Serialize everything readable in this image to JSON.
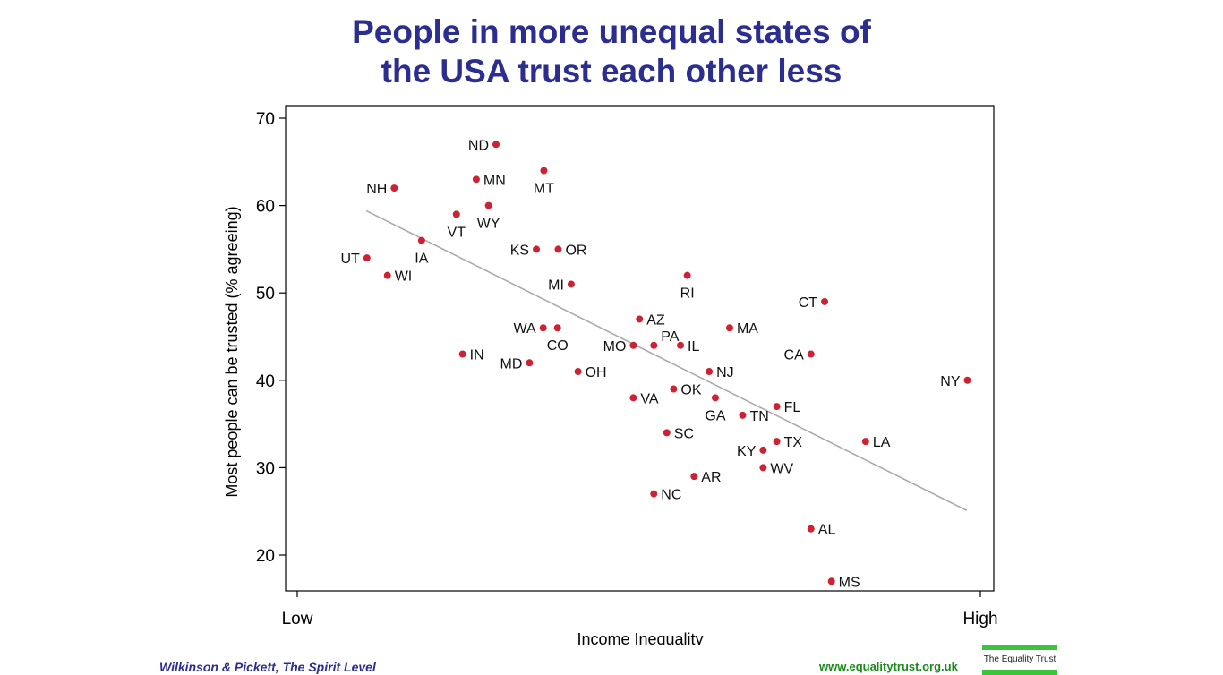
{
  "title_lines": [
    "People in more unequal states of",
    "the USA trust each other less"
  ],
  "footer": {
    "citation": "Wilkinson & Pickett, The Spirit Level",
    "url": "www.equalitytrust.org.uk",
    "logo_text": "The Equality Trust"
  },
  "colors": {
    "title": "#2b2e8f",
    "point": "#cc2233",
    "trend": "#aaaaaa",
    "url": "#1b8a1b",
    "logo": "#3cc43c"
  },
  "chart_data": {
    "type": "scatter",
    "xlabel": "Income Inequality",
    "ylabel": "Most people can be trusted (% agreeing)",
    "xlim": [
      0,
      100
    ],
    "ylim": [
      15,
      71
    ],
    "x_ticks": [
      {
        "value": 0,
        "label": "Low"
      },
      {
        "value": 100,
        "label": "High"
      }
    ],
    "y_ticks": [
      20,
      30,
      40,
      50,
      60,
      70
    ],
    "grid": false,
    "trendline": [
      {
        "x": 10.1,
        "y": 59.4
      },
      {
        "x": 98.0,
        "y": 25.1
      }
    ],
    "points": [
      {
        "label": "ND",
        "x": 29.1,
        "y": 67,
        "label_pos": "left"
      },
      {
        "label": "MT",
        "x": 36.1,
        "y": 64,
        "label_pos": "below"
      },
      {
        "label": "MN",
        "x": 26.2,
        "y": 63,
        "label_pos": "right"
      },
      {
        "label": "NH",
        "x": 14.2,
        "y": 62,
        "label_pos": "left"
      },
      {
        "label": "VT",
        "x": 23.3,
        "y": 59,
        "label_pos": "below"
      },
      {
        "label": "WY",
        "x": 28.0,
        "y": 60,
        "label_pos": "below"
      },
      {
        "label": "IA",
        "x": 18.2,
        "y": 56,
        "label_pos": "below"
      },
      {
        "label": "KS",
        "x": 35.0,
        "y": 55,
        "label_pos": "left"
      },
      {
        "label": "OR",
        "x": 38.2,
        "y": 55,
        "label_pos": "right"
      },
      {
        "label": "UT",
        "x": 10.2,
        "y": 54,
        "label_pos": "left"
      },
      {
        "label": "WI",
        "x": 13.2,
        "y": 52,
        "label_pos": "right"
      },
      {
        "label": "RI",
        "x": 57.1,
        "y": 52,
        "label_pos": "below"
      },
      {
        "label": "MI",
        "x": 40.1,
        "y": 51,
        "label_pos": "left"
      },
      {
        "label": "CT",
        "x": 77.2,
        "y": 49,
        "label_pos": "left"
      },
      {
        "label": "AZ",
        "x": 50.1,
        "y": 47,
        "label_pos": "right"
      },
      {
        "label": "WA",
        "x": 36.0,
        "y": 46,
        "label_pos": "left"
      },
      {
        "label": "CO",
        "x": 38.1,
        "y": 46,
        "label_pos": "below"
      },
      {
        "label": "MA",
        "x": 63.3,
        "y": 46,
        "label_pos": "right"
      },
      {
        "label": "MO",
        "x": 49.2,
        "y": 44,
        "label_pos": "left"
      },
      {
        "label": "PA",
        "x": 52.2,
        "y": 44,
        "label_pos": "above"
      },
      {
        "label": "IL",
        "x": 56.1,
        "y": 44,
        "label_pos": "right"
      },
      {
        "label": "IN",
        "x": 24.2,
        "y": 43,
        "label_pos": "right"
      },
      {
        "label": "CA",
        "x": 75.2,
        "y": 43,
        "label_pos": "left"
      },
      {
        "label": "MD",
        "x": 34.0,
        "y": 42,
        "label_pos": "left"
      },
      {
        "label": "OH",
        "x": 41.1,
        "y": 41,
        "label_pos": "right"
      },
      {
        "label": "NJ",
        "x": 60.3,
        "y": 41,
        "label_pos": "right"
      },
      {
        "label": "NY",
        "x": 98.1,
        "y": 40,
        "label_pos": "left"
      },
      {
        "label": "OK",
        "x": 55.1,
        "y": 39,
        "label_pos": "right"
      },
      {
        "label": "VA",
        "x": 49.2,
        "y": 38,
        "label_pos": "right"
      },
      {
        "label": "GA",
        "x": 61.2,
        "y": 38,
        "label_pos": "below"
      },
      {
        "label": "FL",
        "x": 70.2,
        "y": 37,
        "label_pos": "right"
      },
      {
        "label": "TN",
        "x": 65.2,
        "y": 36,
        "label_pos": "right"
      },
      {
        "label": "SC",
        "x": 54.1,
        "y": 34,
        "label_pos": "right"
      },
      {
        "label": "LA",
        "x": 83.2,
        "y": 33,
        "label_pos": "right"
      },
      {
        "label": "TX",
        "x": 70.2,
        "y": 33,
        "label_pos": "right"
      },
      {
        "label": "KY",
        "x": 68.2,
        "y": 32,
        "label_pos": "left"
      },
      {
        "label": "WV",
        "x": 68.2,
        "y": 30,
        "label_pos": "right"
      },
      {
        "label": "AR",
        "x": 58.1,
        "y": 29,
        "label_pos": "right"
      },
      {
        "label": "NC",
        "x": 52.2,
        "y": 27,
        "label_pos": "right"
      },
      {
        "label": "AL",
        "x": 75.2,
        "y": 23,
        "label_pos": "right"
      },
      {
        "label": "MS",
        "x": 78.2,
        "y": 17,
        "label_pos": "right"
      }
    ]
  }
}
